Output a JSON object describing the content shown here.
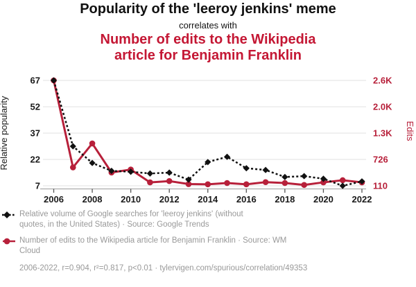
{
  "header": {
    "title": "Popularity of the 'leeroy jenkins' meme",
    "connector": "correlates with",
    "subtitle": "Number of edits to the Wikipedia\narticle for Benjamin Franklin"
  },
  "colors": {
    "title_black": "#111111",
    "subtitle_red": "#c41734",
    "line_black": "#111111",
    "line_red": "#b7203a",
    "grid": "#e8e8e8",
    "axis": "#aaaaaa",
    "tick": "#555555",
    "tick_label_black": "#1a1a1a",
    "legend_text": "#999999"
  },
  "chart_data": {
    "type": "line",
    "title": "Popularity of the 'leeroy jenkins' meme correlates with Number of edits to the Wikipedia article for Benjamin Franklin",
    "x": [
      2006,
      2007,
      2008,
      2009,
      2010,
      2011,
      2012,
      2013,
      2014,
      2015,
      2016,
      2017,
      2018,
      2019,
      2020,
      2021,
      2022
    ],
    "x_ticks": [
      2006,
      2008,
      2010,
      2012,
      2014,
      2016,
      2018,
      2020,
      2022
    ],
    "grid": true,
    "legend_position": "bottom",
    "series": [
      {
        "name": "Relative volume of Google searches for 'leeroy jenkins'",
        "axis": "left",
        "style": "dashed",
        "marker": "diamond",
        "values": [
          67,
          29.5,
          20,
          15.5,
          15,
          14,
          14.5,
          10.5,
          20.5,
          23.5,
          17,
          16,
          12,
          12.5,
          11,
          7,
          9.5
        ]
      },
      {
        "name": "Number of edits to the Wikipedia article for Benjamin Franklin",
        "axis": "right",
        "style": "solid",
        "marker": "circle",
        "values": [
          2575,
          540,
          1100,
          420,
          490,
          190,
          220,
          150,
          145,
          175,
          145,
          195,
          175,
          130,
          190,
          240,
          190
        ]
      }
    ],
    "left_axis": {
      "label": "Relative popularity",
      "range": [
        7,
        67
      ],
      "ticks": [
        {
          "value": 67,
          "label": "67"
        },
        {
          "value": 52,
          "label": "52"
        },
        {
          "value": 37,
          "label": "37"
        },
        {
          "value": 22,
          "label": "22"
        },
        {
          "value": 7,
          "label": "7"
        }
      ]
    },
    "right_axis": {
      "label": "Edits",
      "range": [
        110,
        2575
      ],
      "ticks": [
        {
          "value": 2575,
          "label": "2.6K"
        },
        {
          "value": 1959,
          "label": "2.0K"
        },
        {
          "value": 1343,
          "label": "1.3K"
        },
        {
          "value": 726,
          "label": "726"
        },
        {
          "value": 110,
          "label": "110"
        }
      ]
    }
  },
  "legend": {
    "entries": [
      {
        "icon": "black-diamond-dashed-line-icon",
        "label": "Relative volume of Google searches for 'leeroy jenkins' (without\nquotes, in the United States) · Source: Google Trends"
      },
      {
        "icon": "red-circle-solid-line-icon",
        "label": "Number of edits to the Wikipedia article for Benjamin Franklin · Source: WM\nCloud"
      }
    ],
    "footer": "2006-2022, r=0.904, r²=0.817, p<0.01 · tylervigen.com/spurious/correlation/49353"
  }
}
